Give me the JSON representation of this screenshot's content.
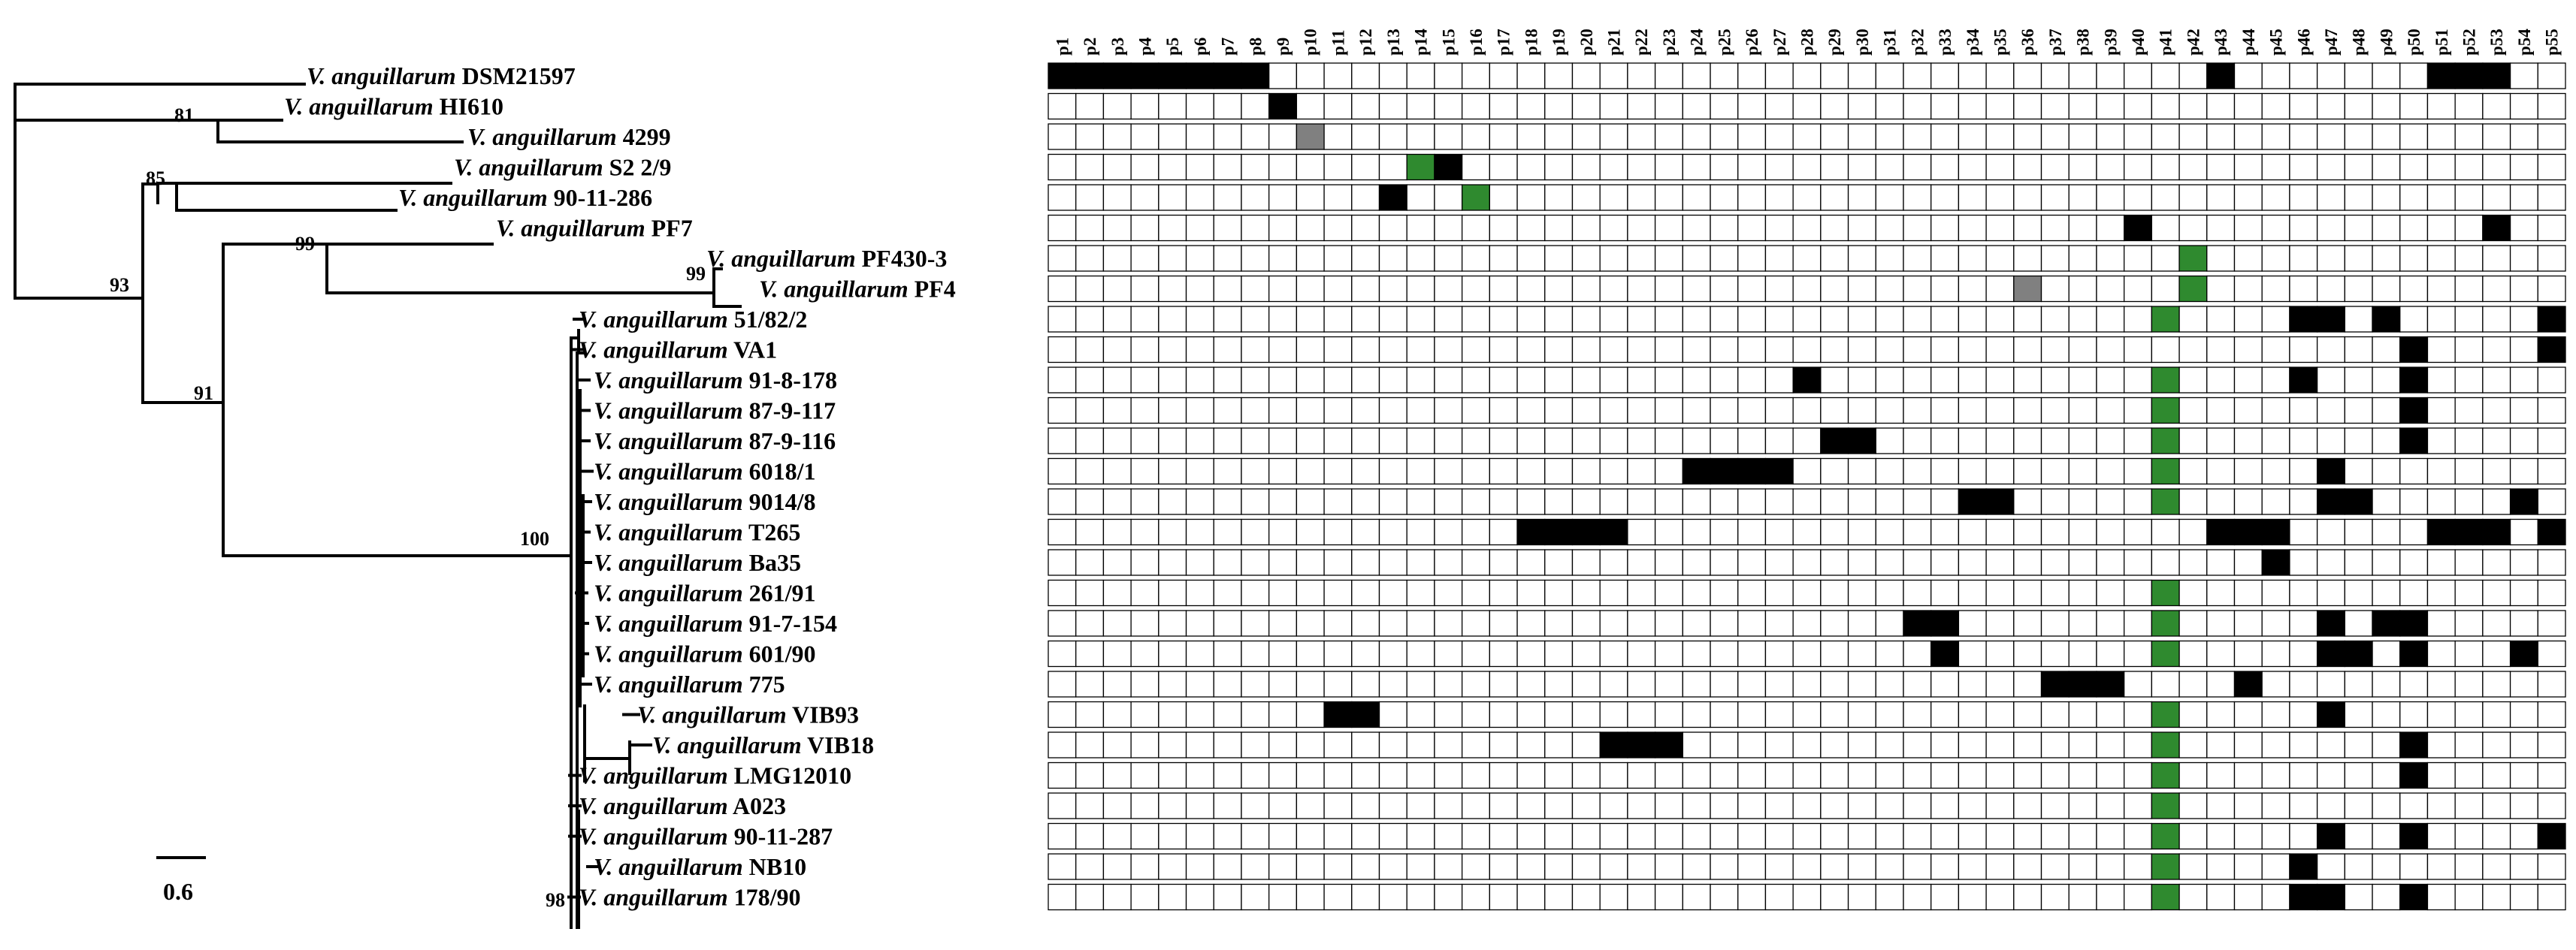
{
  "genus": "V. anguillarum",
  "scale_label": "0.6",
  "columns": [
    "p1",
    "p2",
    "p3",
    "p4",
    "p5",
    "p6",
    "p7",
    "p8",
    "p9",
    "p10",
    "p11",
    "p12",
    "p13",
    "p14",
    "p15",
    "p16",
    "p17",
    "p18",
    "p19",
    "p20",
    "p21",
    "p22",
    "p23",
    "p24",
    "p25",
    "p26",
    "p27",
    "p28",
    "p29",
    "p30",
    "p31",
    "p32",
    "p33",
    "p34",
    "p35",
    "p36",
    "p37",
    "p38",
    "p39",
    "p40",
    "p41",
    "p42",
    "p43",
    "p44",
    "p45",
    "p46",
    "p47",
    "p48",
    "p49",
    "p50",
    "p51",
    "p52",
    "p53",
    "p54",
    "p55"
  ],
  "colors": {
    "black": "#000000",
    "green": "#2f8a2f",
    "gray": "#808080"
  },
  "bootstrap": [
    {
      "id": "b81",
      "value": "81"
    },
    {
      "id": "b85",
      "value": "85"
    },
    {
      "id": "b93",
      "value": "93"
    },
    {
      "id": "b99a",
      "value": "99"
    },
    {
      "id": "b99b",
      "value": "99"
    },
    {
      "id": "b91",
      "value": "91"
    },
    {
      "id": "b100",
      "value": "100"
    },
    {
      "id": "b98",
      "value": "98"
    }
  ],
  "strains": [
    {
      "name": "DSM21597",
      "black": [
        1,
        2,
        3,
        4,
        5,
        6,
        7,
        8,
        43,
        51,
        52,
        53
      ],
      "green": [],
      "gray": []
    },
    {
      "name": "HI610",
      "black": [
        9
      ],
      "green": [],
      "gray": []
    },
    {
      "name": "4299",
      "black": [],
      "green": [],
      "gray": [
        10
      ]
    },
    {
      "name": "S2 2/9",
      "black": [
        15
      ],
      "green": [
        14
      ],
      "gray": []
    },
    {
      "name": "90-11-286",
      "black": [
        13
      ],
      "green": [
        16
      ],
      "gray": []
    },
    {
      "name": "PF7",
      "black": [
        40,
        53
      ],
      "green": [],
      "gray": []
    },
    {
      "name": "PF430-3",
      "black": [],
      "green": [
        42
      ],
      "gray": []
    },
    {
      "name": "PF4",
      "black": [],
      "green": [
        42
      ],
      "gray": [
        36
      ]
    },
    {
      "name": "51/82/2",
      "black": [
        46,
        47,
        49,
        55
      ],
      "green": [
        41
      ],
      "gray": []
    },
    {
      "name": "VA1",
      "black": [
        50,
        55
      ],
      "green": [],
      "gray": []
    },
    {
      "name": "91-8-178",
      "black": [
        28,
        46,
        50
      ],
      "green": [
        41
      ],
      "gray": []
    },
    {
      "name": "87-9-117",
      "black": [
        50
      ],
      "green": [
        41
      ],
      "gray": []
    },
    {
      "name": "87-9-116",
      "black": [
        29,
        30,
        50
      ],
      "green": [
        41
      ],
      "gray": []
    },
    {
      "name": "6018/1",
      "black": [
        24,
        25,
        26,
        27,
        47
      ],
      "green": [
        41
      ],
      "gray": []
    },
    {
      "name": "9014/8",
      "black": [
        34,
        35,
        47,
        48,
        54
      ],
      "green": [
        41
      ],
      "gray": []
    },
    {
      "name": "T265",
      "black": [
        18,
        19,
        20,
        21,
        43,
        44,
        45,
        51,
        52,
        53,
        55
      ],
      "green": [],
      "gray": []
    },
    {
      "name": "Ba35",
      "black": [
        45
      ],
      "green": [],
      "gray": []
    },
    {
      "name": "261/91",
      "black": [],
      "green": [
        41
      ],
      "gray": []
    },
    {
      "name": "91-7-154",
      "black": [
        32,
        33,
        47,
        49,
        50
      ],
      "green": [
        41
      ],
      "gray": []
    },
    {
      "name": "601/90",
      "black": [
        33,
        47,
        48,
        50,
        54
      ],
      "green": [
        41
      ],
      "gray": []
    },
    {
      "name": "775",
      "black": [
        37,
        38,
        39,
        44
      ],
      "green": [],
      "gray": []
    },
    {
      "name": "VIB93",
      "black": [
        11,
        12,
        47
      ],
      "green": [
        41
      ],
      "gray": []
    },
    {
      "name": "VIB18",
      "black": [
        21,
        22,
        23,
        50
      ],
      "green": [
        41
      ],
      "gray": []
    },
    {
      "name": "LMG12010",
      "black": [
        50
      ],
      "green": [
        41
      ],
      "gray": []
    },
    {
      "name": "A023",
      "black": [],
      "green": [
        41
      ],
      "gray": []
    },
    {
      "name": "90-11-287",
      "black": [
        47,
        50,
        55
      ],
      "green": [
        41
      ],
      "gray": []
    },
    {
      "name": "NB10",
      "black": [
        46
      ],
      "green": [
        41
      ],
      "gray": []
    },
    {
      "name": "178/90",
      "black": [
        46,
        47,
        50
      ],
      "green": [
        41
      ],
      "gray": []
    }
  ]
}
